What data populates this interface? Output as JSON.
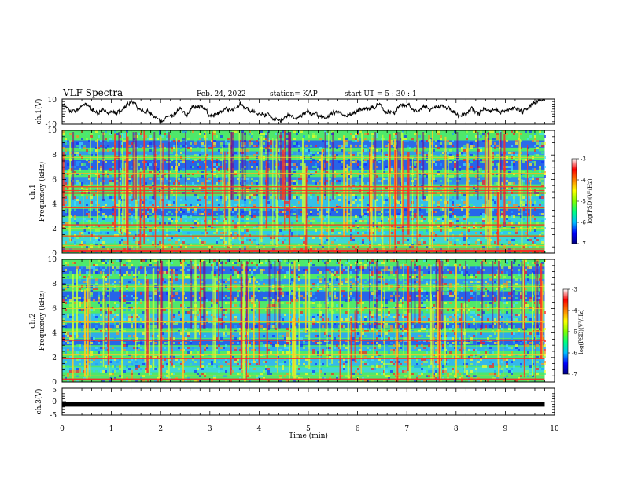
{
  "header": {
    "title": "VLF Spectra",
    "date": "Feb. 24, 2022",
    "station": "station= KAP",
    "start": "start  UT =  5 : 30 : 1"
  },
  "chart_data": [
    {
      "id": "ch1-waveform",
      "type": "line",
      "ylabel": "ch.1(V)",
      "ylim": [
        -10,
        10
      ],
      "yticks": [
        "10",
        "-10"
      ],
      "xlim": [
        0,
        10
      ],
      "trace_extent_min": 9.8,
      "color": "#000000"
    },
    {
      "id": "ch1-spectrogram",
      "type": "heatmap",
      "ylabel": "ch.1\nFrequency (kHz)",
      "ylabel_line1": "ch.1",
      "ylabel_line2": "Frequency (kHz)",
      "ylim": [
        0,
        10
      ],
      "yticks": [
        "0",
        "2",
        "4",
        "6",
        "8",
        "10"
      ],
      "xlim": [
        0,
        10
      ],
      "data_extent_min": 9.8,
      "colorbar": {
        "label": "log(PSD)(V²/Hz)",
        "range": [
          -7,
          -3
        ],
        "ticks": [
          "-3",
          "-4",
          "-5",
          "-6",
          "-7"
        ],
        "colors": [
          "#000080",
          "#0000ff",
          "#00bfff",
          "#00ff80",
          "#80ff00",
          "#ffff00",
          "#ff8000",
          "#ff0000",
          "#ffffff"
        ]
      }
    },
    {
      "id": "ch2-spectrogram",
      "type": "heatmap",
      "ylabel": "ch.2\nFrequency (kHz)",
      "ylabel_line1": "ch.2",
      "ylabel_line2": "Frequency (kHz)",
      "ylim": [
        0,
        10
      ],
      "yticks": [
        "0",
        "2",
        "4",
        "6",
        "8",
        "10"
      ],
      "xlim": [
        0,
        10
      ],
      "data_extent_min": 9.8,
      "colorbar": {
        "label": "log(PSD)(V²/Hz)",
        "range": [
          -7,
          -3
        ],
        "ticks": [
          "-3",
          "-4",
          "-5",
          "-6",
          "-7"
        ]
      }
    },
    {
      "id": "ch3-waveform",
      "type": "line",
      "ylabel": "ch.3(V)",
      "ylim": [
        -5,
        5
      ],
      "yticks": [
        "5",
        "0",
        "-5"
      ],
      "xlim": [
        0,
        10
      ],
      "trace_extent_min": 9.8,
      "value": -1,
      "color": "#000000"
    }
  ],
  "xaxis": {
    "label": "Time (min)",
    "ticks": [
      "0",
      "1",
      "2",
      "3",
      "4",
      "5",
      "6",
      "7",
      "8",
      "9",
      "10"
    ]
  }
}
